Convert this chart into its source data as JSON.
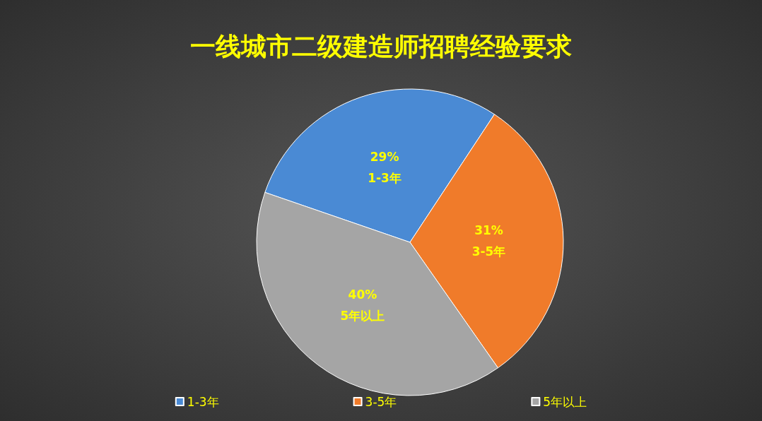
{
  "chart_data": {
    "type": "pie",
    "title": "一线城市二级建造师招聘经验要求",
    "categories": [
      "1-3年",
      "3-5年",
      "5年以上"
    ],
    "values": [
      29,
      31,
      40
    ],
    "colors": [
      "#4a8ad4",
      "#f07b2a",
      "#a5a5a5"
    ],
    "value_labels": [
      "29%",
      "31%",
      "40%"
    ],
    "legend": "bottom"
  }
}
